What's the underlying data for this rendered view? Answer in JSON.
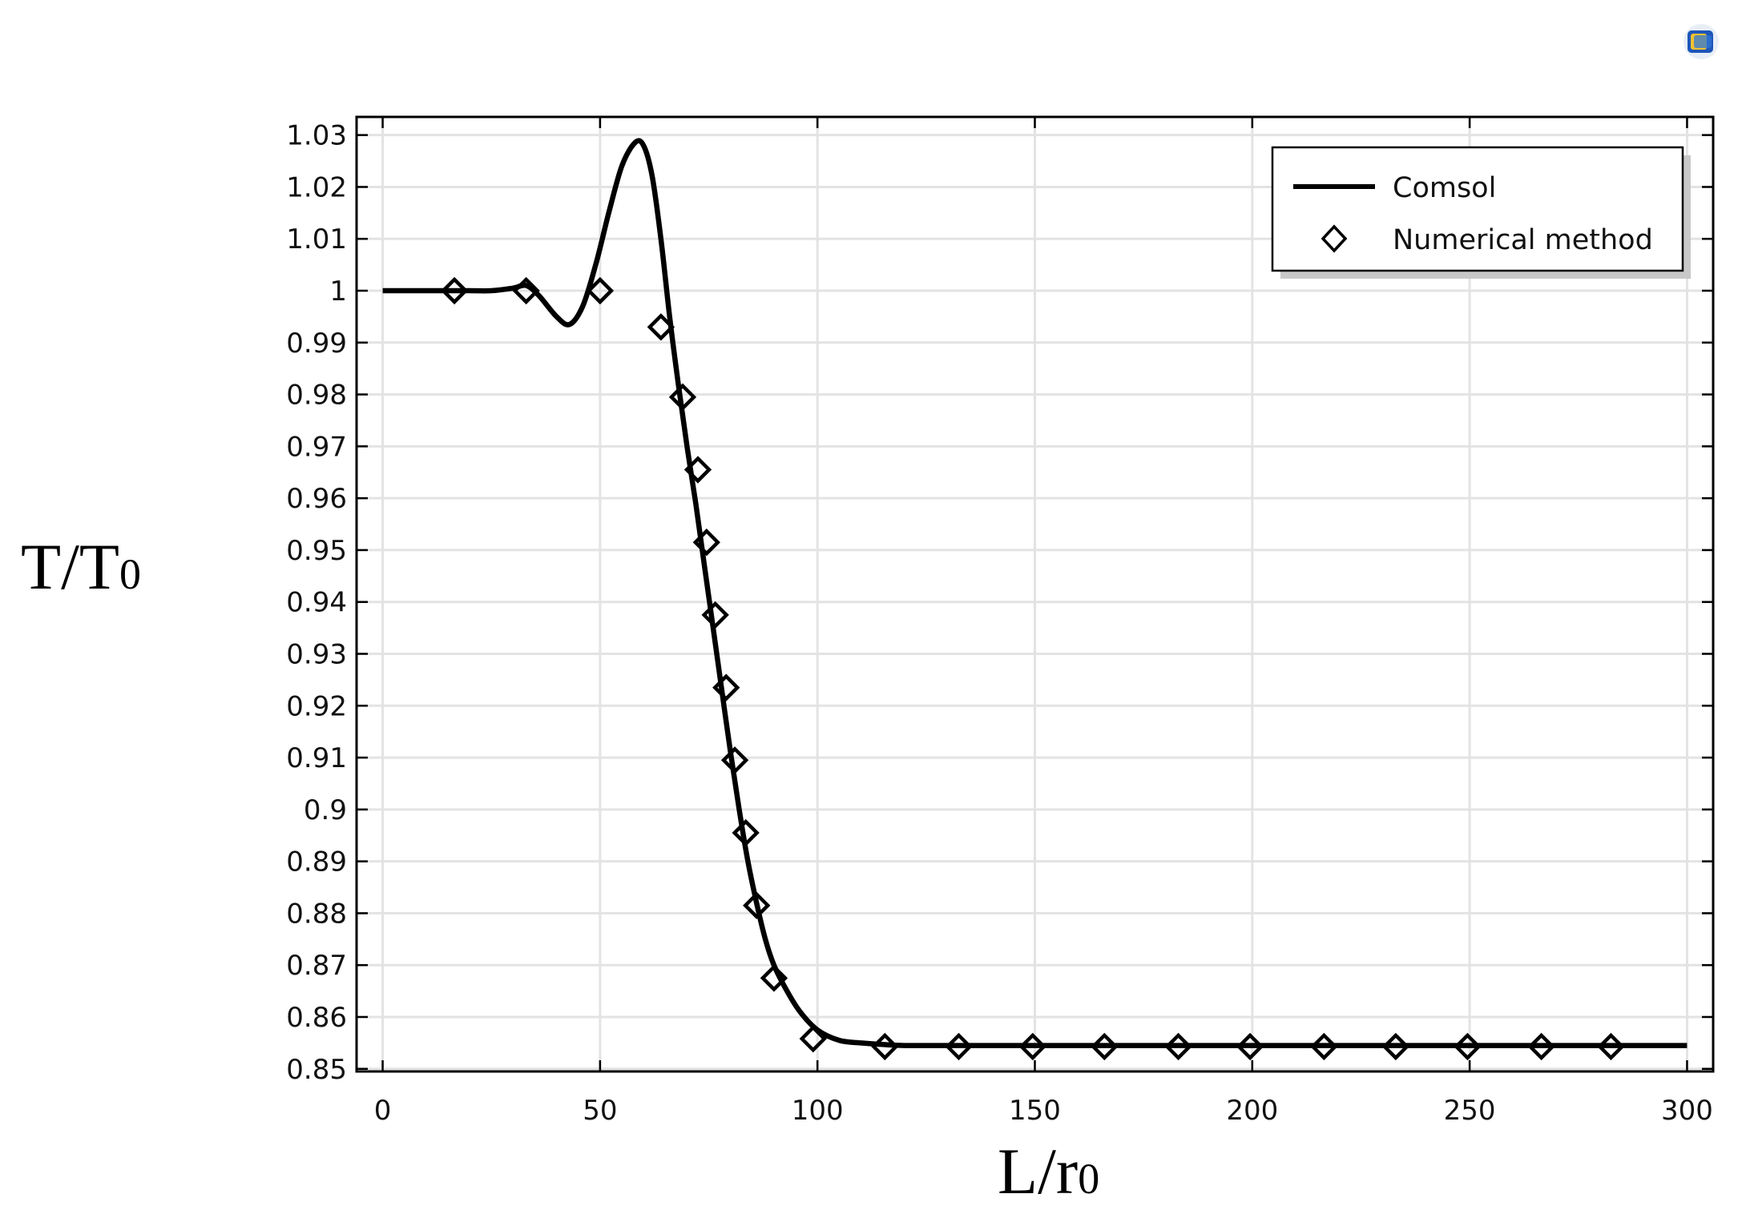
{
  "chart_data": {
    "type": "line",
    "xlabel": {
      "main": "L/r",
      "sub": "0"
    },
    "ylabel": {
      "main": "T/T",
      "sub": "0"
    },
    "xlim": [
      -6,
      306
    ],
    "ylim": [
      0.8495,
      1.0335
    ],
    "x_ticks": [
      "0",
      "50",
      "100",
      "150",
      "200",
      "250",
      "300"
    ],
    "x_tick_values": [
      0,
      50,
      100,
      150,
      200,
      250,
      300
    ],
    "y_ticks": [
      "0.85",
      "0.86",
      "0.87",
      "0.88",
      "0.89",
      "0.9",
      "0.91",
      "0.92",
      "0.93",
      "0.94",
      "0.95",
      "0.96",
      "0.97",
      "0.98",
      "0.99",
      "1",
      "1.01",
      "1.02",
      "1.03"
    ],
    "y_tick_values": [
      0.85,
      0.86,
      0.87,
      0.88,
      0.89,
      0.9,
      0.91,
      0.92,
      0.93,
      0.94,
      0.95,
      0.96,
      0.97,
      0.98,
      0.99,
      1.0,
      1.01,
      1.02,
      1.03
    ],
    "grid": true,
    "legend_position": "top-right",
    "series": [
      {
        "name": "Comsol",
        "style": "line",
        "color": "#000000",
        "x": [
          0,
          10,
          20,
          25,
          30,
          33,
          36,
          40,
          43,
          46,
          49,
          52,
          55,
          58,
          60,
          62,
          64,
          66,
          68,
          70,
          72,
          74,
          76,
          78,
          80,
          82,
          84,
          86,
          88,
          90,
          93,
          96,
          100,
          105,
          110,
          115,
          120,
          130,
          150,
          200,
          250,
          300
        ],
        "y": [
          1.0,
          1.0,
          1.0,
          1.0,
          1.0005,
          1.001,
          0.999,
          0.995,
          0.9935,
          0.997,
          1.005,
          1.015,
          1.024,
          1.0285,
          1.028,
          1.022,
          1.01,
          0.995,
          0.982,
          0.97,
          0.959,
          0.947,
          0.935,
          0.923,
          0.911,
          0.9,
          0.89,
          0.882,
          0.875,
          0.87,
          0.865,
          0.861,
          0.8575,
          0.8555,
          0.855,
          0.8547,
          0.8545,
          0.8545,
          0.8545,
          0.8545,
          0.8545,
          0.8545
        ]
      },
      {
        "name": "Numerical method",
        "style": "markers",
        "marker": "diamond",
        "color": "#000000",
        "x": [
          16.5,
          33,
          50,
          64,
          69,
          72.5,
          74.5,
          76.5,
          79,
          81,
          83.5,
          86,
          90,
          99,
          115.5,
          132.5,
          149.5,
          166,
          183,
          199.5,
          216.5,
          233,
          249.5,
          266.5,
          282.5
        ],
        "y": [
          1.0,
          1.0,
          1.0,
          0.993,
          0.9795,
          0.9655,
          0.9515,
          0.9375,
          0.9235,
          0.9095,
          0.8955,
          0.8815,
          0.8675,
          0.8558,
          0.8543,
          0.8543,
          0.8543,
          0.8543,
          0.8543,
          0.8543,
          0.8543,
          0.8543,
          0.8543,
          0.8543,
          0.8543
        ]
      }
    ]
  }
}
